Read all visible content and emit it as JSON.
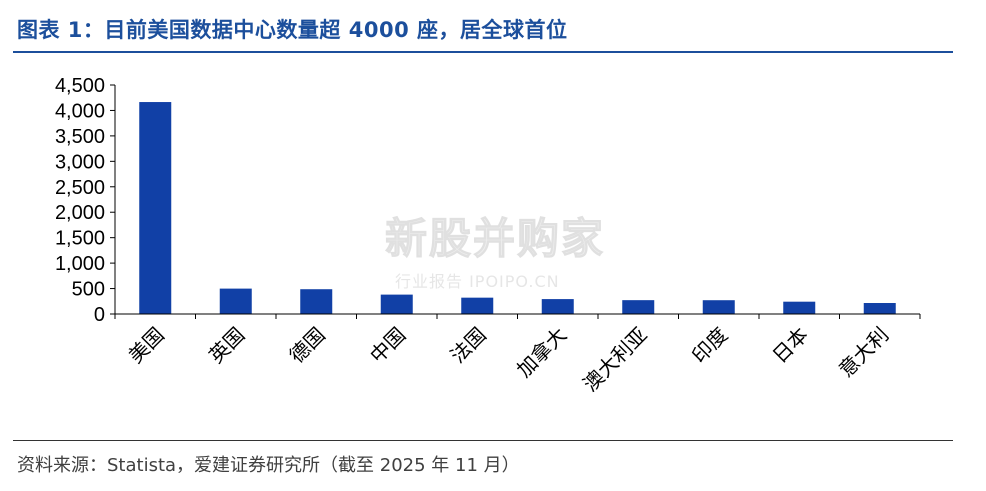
{
  "title": "图表 1：目前美国数据中心数量超 4000 座，居全球首位",
  "source": "资料来源：Statista，爱建证券研究所（截至 2025 年 11 月）",
  "watermark": {
    "main": "新股并购家",
    "sub": "行业报告 IPOIPO.CN"
  },
  "colors": {
    "title": "#1c4f9c",
    "bar": "#1140a6"
  },
  "chart_data": {
    "type": "bar",
    "categories": [
      "美国",
      "英国",
      "德国",
      "中国",
      "法国",
      "加拿大",
      "澳大利亚",
      "印度",
      "日本",
      "意大利"
    ],
    "values": [
      4165,
      499,
      487,
      381,
      321,
      293,
      272,
      271,
      242,
      216
    ],
    "yticks": [
      "0",
      "500",
      "1,000",
      "1,500",
      "2,000",
      "2,500",
      "3,000",
      "3,500",
      "4,000",
      "4,500"
    ],
    "ylim": [
      0,
      4500
    ],
    "title": "",
    "xlabel": "",
    "ylabel": "",
    "grid": false,
    "legend": "none"
  }
}
